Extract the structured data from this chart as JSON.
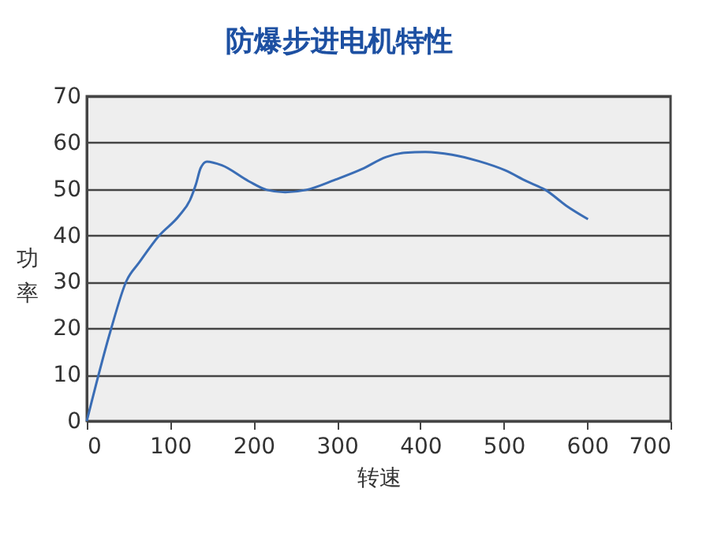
{
  "chart_data": {
    "type": "line",
    "title": "防爆步进电机特性",
    "xlabel": "转速",
    "ylabel": "功率",
    "x": [
      0,
      28.6,
      47.6,
      63,
      86,
      111,
      124,
      131,
      136.5,
      144,
      162,
      194,
      216,
      238,
      263,
      298,
      330,
      359,
      381,
      406,
      438,
      470,
      502,
      527,
      550,
      575,
      601
    ],
    "series": [
      {
        "color": "#3a6db5",
        "values": [
          0,
          19.5,
          30.2,
          34.2,
          39.8,
          44.3,
          47.7,
          51.1,
          54.5,
          55.9,
          55.1,
          51.7,
          49.8,
          49.3,
          49.8,
          52,
          54.3,
          56.9,
          57.8,
          58,
          57.4,
          56,
          54,
          51.7,
          49.8,
          46.4,
          43.5
        ]
      }
    ],
    "xlim": [
      0,
      700
    ],
    "xticks": [
      0,
      100,
      200,
      300,
      400,
      500,
      600,
      700
    ],
    "ylim": [
      0,
      70
    ],
    "yticks": [
      0,
      10,
      20,
      30,
      40,
      50,
      60,
      70
    ],
    "grid": "y",
    "marker": "none",
    "line_style": "solid"
  }
}
